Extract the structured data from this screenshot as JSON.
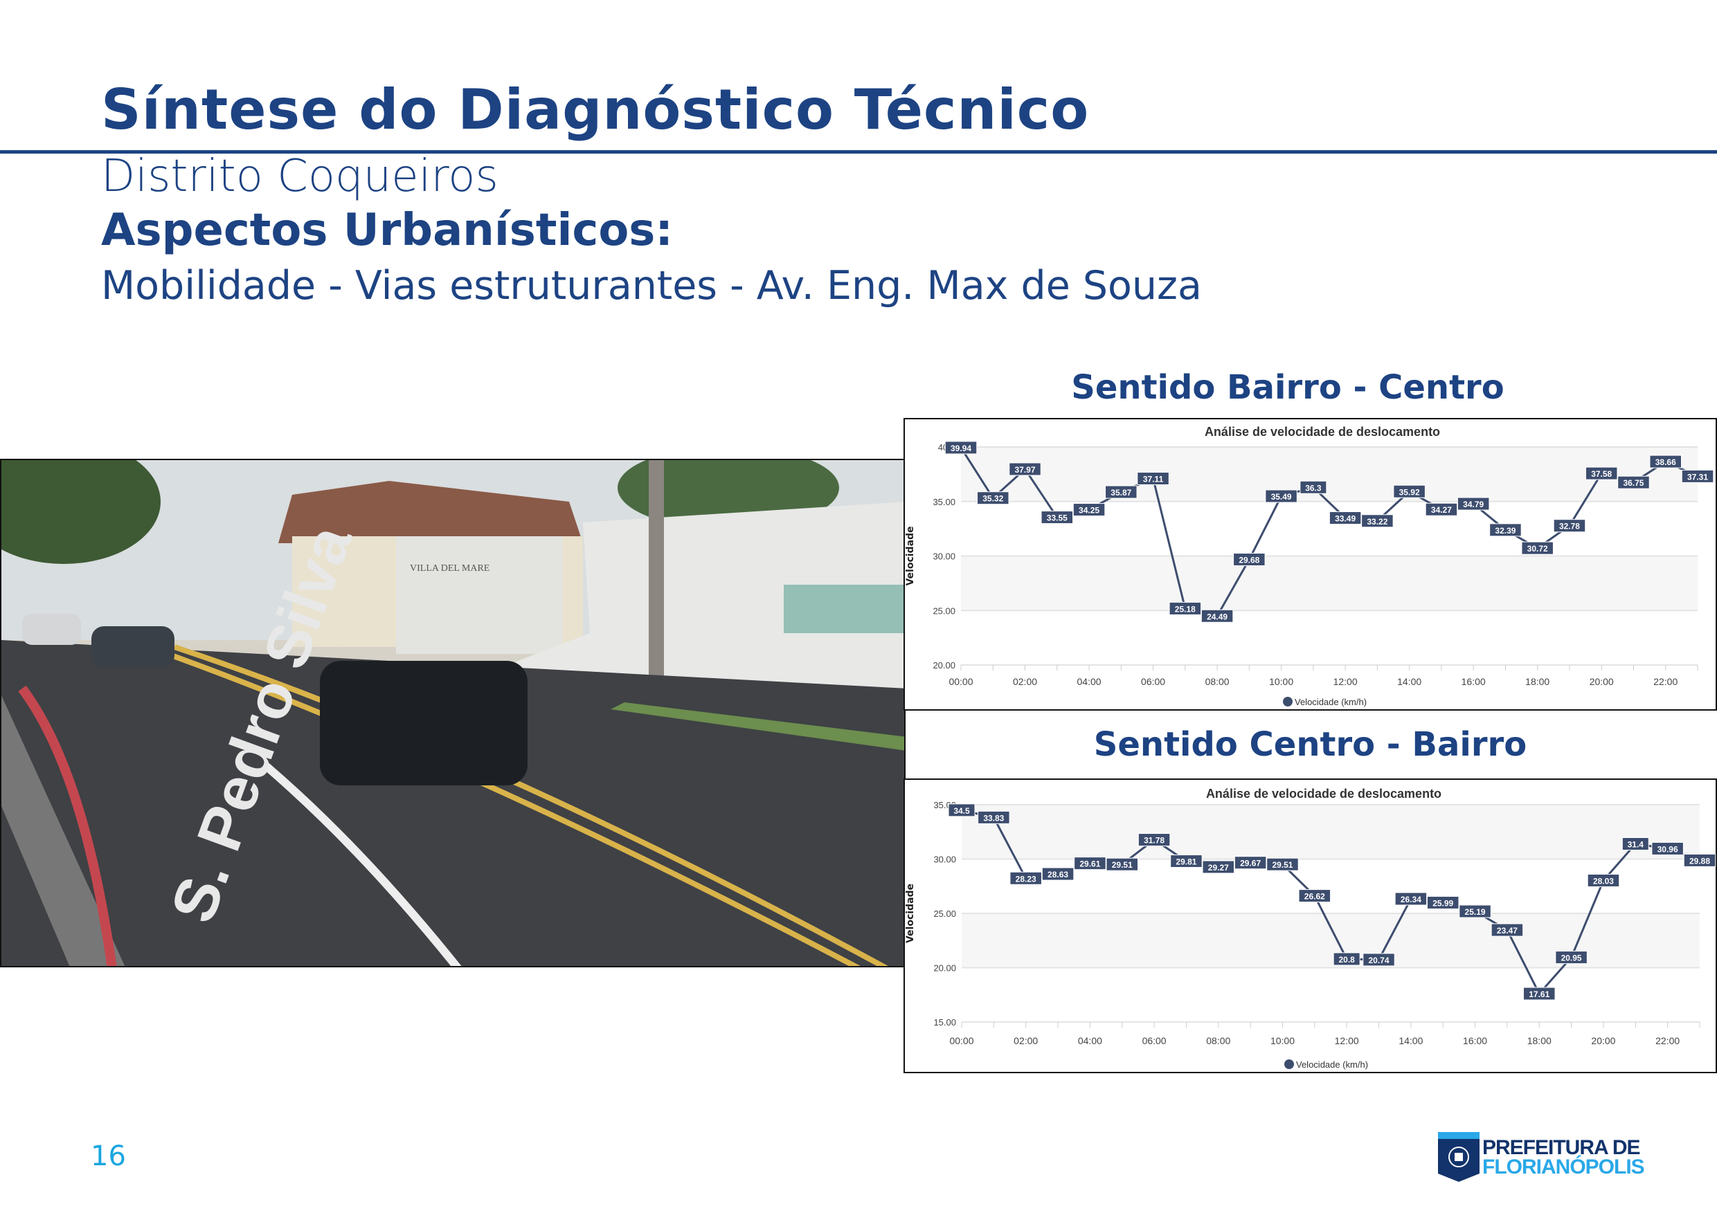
{
  "header": {
    "title": "Síntese do Diagnóstico Técnico",
    "subtitle": "Distrito Coqueiros",
    "section": "Aspectos Urbanísticos:",
    "topic": "Mobilidade - Vias estruturantes - Av. Eng. Max de Souza"
  },
  "photo": {
    "street_text": "S. Pedro Silva",
    "building_sign": "VILLA DEL MARE"
  },
  "panels": [
    {
      "heading": "Sentido Bairro - Centro"
    },
    {
      "heading": "Sentido Centro - Bairro"
    }
  ],
  "colors": {
    "brand": "#1d4383",
    "accent": "#19a6e0",
    "series": "#3d4d6e"
  },
  "chart_data": [
    {
      "type": "line",
      "title": "Análise de velocidade de deslocamento",
      "xlabel": "",
      "ylabel": "Velocidade",
      "x": [
        "00:00",
        "01:00",
        "02:00",
        "03:00",
        "04:00",
        "05:00",
        "06:00",
        "07:00",
        "08:00",
        "09:00",
        "10:00",
        "11:00",
        "12:00",
        "13:00",
        "14:00",
        "15:00",
        "16:00",
        "17:00",
        "18:00",
        "19:00",
        "20:00",
        "21:00",
        "22:00",
        "23:00"
      ],
      "xtick_labels": [
        "00:00",
        "02:00",
        "04:00",
        "06:00",
        "08:00",
        "10:00",
        "12:00",
        "14:00",
        "16:00",
        "18:00",
        "20:00",
        "22:00"
      ],
      "ylim": [
        20,
        40
      ],
      "ytick_labels": [
        "20.00",
        "25.00",
        "30.00",
        "35.00",
        "40.0"
      ],
      "yticks": [
        20,
        25,
        30,
        35,
        40
      ],
      "grid": true,
      "legend": "bottom",
      "series": [
        {
          "name": "Velocidade (km/h)",
          "values": [
            39.94,
            35.32,
            37.97,
            33.55,
            34.25,
            35.87,
            37.11,
            25.18,
            24.49,
            29.68,
            35.49,
            36.3,
            33.49,
            33.22,
            35.92,
            34.27,
            34.79,
            32.39,
            30.72,
            32.78,
            37.58,
            36.75,
            38.66,
            37.31
          ]
        }
      ]
    },
    {
      "type": "line",
      "title": "Análise de velocidade de deslocamento",
      "xlabel": "",
      "ylabel": "Velocidade",
      "x": [
        "00:00",
        "01:00",
        "02:00",
        "03:00",
        "04:00",
        "05:00",
        "06:00",
        "07:00",
        "08:00",
        "09:00",
        "10:00",
        "11:00",
        "12:00",
        "13:00",
        "14:00",
        "15:00",
        "16:00",
        "17:00",
        "18:00",
        "19:00",
        "20:00",
        "21:00",
        "22:00",
        "23:00"
      ],
      "xtick_labels": [
        "00:00",
        "02:00",
        "04:00",
        "06:00",
        "08:00",
        "10:00",
        "12:00",
        "14:00",
        "16:00",
        "18:00",
        "20:00",
        "22:00"
      ],
      "ylim": [
        15,
        35
      ],
      "ytick_labels": [
        "15.00",
        "20.00",
        "25.00",
        "30.00",
        "35.00"
      ],
      "yticks": [
        15,
        20,
        25,
        30,
        35
      ],
      "grid": true,
      "legend": "bottom",
      "series": [
        {
          "name": "Velocidade (km/h)",
          "values": [
            34.5,
            33.83,
            28.23,
            28.63,
            29.61,
            29.51,
            31.78,
            29.81,
            29.27,
            29.67,
            29.51,
            26.62,
            20.8,
            20.74,
            26.34,
            25.99,
            25.19,
            23.47,
            17.61,
            20.95,
            28.03,
            31.4,
            30.96,
            29.88
          ]
        }
      ]
    }
  ],
  "footer": {
    "page_number": "16",
    "logo_line1": "PREFEITURA DE",
    "logo_line2": "FLORIANÓPOLIS"
  }
}
